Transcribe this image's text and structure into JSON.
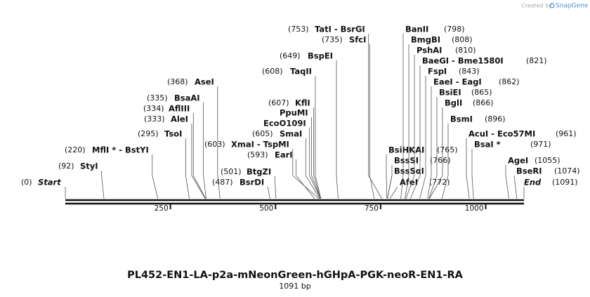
{
  "map": {
    "credit": "Created by",
    "brand": "SnapGene",
    "title": "PL452-EN1-LA-p2a-mNeonGreen-hGHpA-PGK-neoR-EN1-RA",
    "subtitle": "1091 bp",
    "start": {
      "name": "Start",
      "position": 0,
      "position_label": "(0)"
    },
    "end": {
      "name": "End",
      "position": 1091,
      "position_label": "(1091)"
    },
    "ticks": [
      250,
      500,
      750,
      1000
    ],
    "sites": [
      {
        "name": "StyI",
        "position": 92,
        "position_label": "(92)"
      },
      {
        "name": "MflI * - BstYI",
        "position": 220,
        "position_label": "(220)"
      },
      {
        "name": "TsoI",
        "position": 295,
        "position_label": "(295)"
      },
      {
        "name": "AleI",
        "position": 333,
        "position_label": "(333)"
      },
      {
        "name": "AflIII",
        "position": 334,
        "position_label": "(334)"
      },
      {
        "name": "BsaAI",
        "position": 335,
        "position_label": "(335)"
      },
      {
        "name": "AseI",
        "position": 368,
        "position_label": "(368)"
      },
      {
        "name": "BsrDI",
        "position": 487,
        "position_label": "(487)"
      },
      {
        "name": "BtgZI",
        "position": 501,
        "position_label": "(501)"
      },
      {
        "name": "EarI",
        "position": 593,
        "position_label": "(593)"
      },
      {
        "name": "XmaI - TspMI",
        "position": 603,
        "position_label": "(603)"
      },
      {
        "name": "SmaI",
        "position": 605,
        "position_label": "(605)"
      },
      {
        "name": "EcoO109I",
        "position": 607
      },
      {
        "name": "PpuMI",
        "position": 607
      },
      {
        "name": "KflI",
        "position": 607,
        "position_label": "(607)"
      },
      {
        "name": "TaqII",
        "position": 608,
        "position_label": "(608)"
      },
      {
        "name": "BspEI",
        "position": 649,
        "position_label": "(649)"
      },
      {
        "name": "SfcI",
        "position": 735,
        "position_label": "(735)"
      },
      {
        "name": "TatI - BsrGI",
        "position": 753,
        "position_label": "(753)"
      },
      {
        "name": "BsiHKAI",
        "position": 765,
        "position_label": "(765)"
      },
      {
        "name": "BssSI",
        "position": 766,
        "position_label": "(766)"
      },
      {
        "name": "BssSαI",
        "position": 766
      },
      {
        "name": "AfeI",
        "position": 772,
        "position_label": "(772)"
      },
      {
        "name": "BanII",
        "position": 798,
        "position_label": "(798)"
      },
      {
        "name": "BmgBI",
        "position": 808,
        "position_label": "(808)"
      },
      {
        "name": "PshAI",
        "position": 810,
        "position_label": "(810)"
      },
      {
        "name": "BaeGI - Bme1580I",
        "position": 821,
        "position_label": "(821)"
      },
      {
        "name": "FspI",
        "position": 843,
        "position_label": "(843)"
      },
      {
        "name": "EaeI - EagI",
        "position": 862,
        "position_label": "(862)"
      },
      {
        "name": "BsiEI",
        "position": 865,
        "position_label": "(865)"
      },
      {
        "name": "BglI",
        "position": 866,
        "position_label": "(866)"
      },
      {
        "name": "BsmI",
        "position": 896,
        "position_label": "(896)"
      },
      {
        "name": "AcuI - Eco57MI",
        "position": 961,
        "position_label": "(961)"
      },
      {
        "name": "BsaI *",
        "position": 971,
        "position_label": "(971)"
      },
      {
        "name": "AgeI",
        "position": 1055,
        "position_label": "(1055)"
      },
      {
        "name": "BseRI",
        "position": 1074,
        "position_label": "(1074)"
      }
    ]
  }
}
